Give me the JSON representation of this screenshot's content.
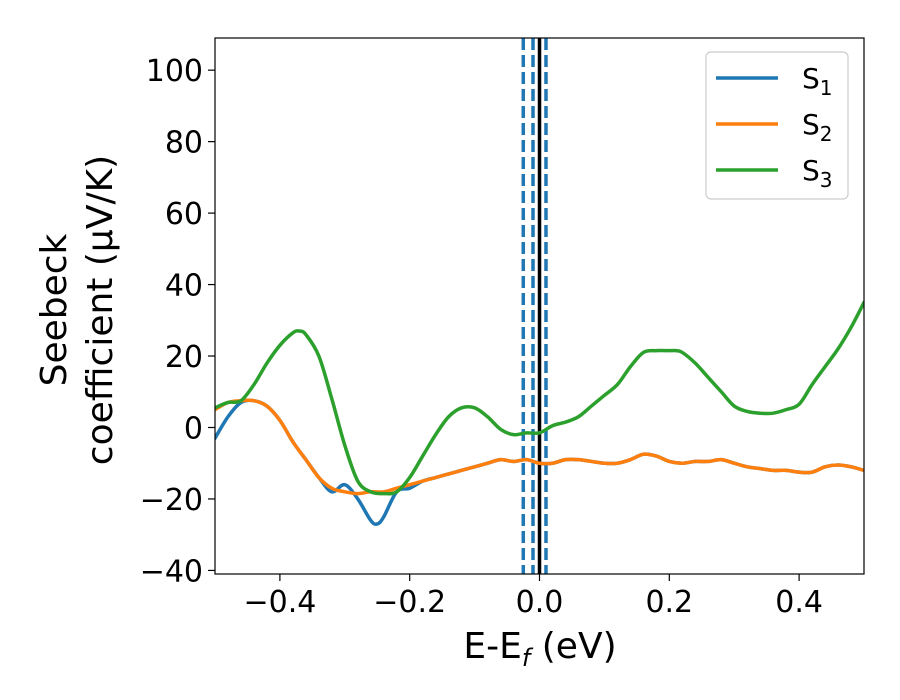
{
  "chart_data": {
    "type": "line",
    "xlabel": "E-E",
    "xlabel_sub": "f",
    "xlabel_unit": " (eV)",
    "ylabel_line1": "Seebeck",
    "ylabel_line2": "coefficient  (μV/K)",
    "xlim": [
      -0.5,
      0.5
    ],
    "ylim": [
      -41,
      109
    ],
    "xticks": [
      -0.4,
      -0.2,
      0.0,
      0.2,
      0.4
    ],
    "xtick_labels": [
      "−0.4",
      "−0.2",
      "0.0",
      "0.2",
      "0.4"
    ],
    "yticks": [
      -40,
      -20,
      0,
      20,
      40,
      60,
      80,
      100
    ],
    "ytick_labels": [
      "−40",
      "−20",
      "0",
      "20",
      "40",
      "60",
      "80",
      "100"
    ],
    "legend_position": "top-right",
    "grid": false,
    "vlines": [
      {
        "x": -0.025,
        "style": "dashed",
        "color": "#1f77b4"
      },
      {
        "x": -0.01,
        "style": "dashed",
        "color": "#1f77b4"
      },
      {
        "x": 0.01,
        "style": "dashed",
        "color": "#1f77b4"
      },
      {
        "x": 0.0,
        "style": "solid",
        "color": "#000000"
      }
    ],
    "series": [
      {
        "name": "S",
        "sub": "1",
        "color": "#1f77b4",
        "x": [
          -0.5,
          -0.48,
          -0.46,
          -0.44,
          -0.42,
          -0.4,
          -0.38,
          -0.36,
          -0.34,
          -0.32,
          -0.3,
          -0.28,
          -0.26,
          -0.25,
          -0.24,
          -0.22,
          -0.2,
          -0.18,
          -0.16,
          -0.14,
          -0.12,
          -0.1,
          -0.08,
          -0.06,
          -0.04,
          -0.02,
          0.0,
          0.02,
          0.04,
          0.06,
          0.08,
          0.1,
          0.12,
          0.14,
          0.16,
          0.18,
          0.2,
          0.22,
          0.24,
          0.26,
          0.28,
          0.3,
          0.32,
          0.34,
          0.36,
          0.38,
          0.4,
          0.42,
          0.44,
          0.46,
          0.48,
          0.5
        ],
        "y": [
          -3,
          3,
          7,
          7.5,
          6,
          2,
          -4,
          -9,
          -14,
          -18,
          -16,
          -20,
          -26,
          -27,
          -25,
          -18,
          -17,
          -15,
          -14,
          -13,
          -12,
          -11,
          -10,
          -9,
          -9.5,
          -9,
          -10,
          -10,
          -9,
          -9,
          -9.5,
          -10,
          -10,
          -9,
          -7.5,
          -8,
          -9.5,
          -10,
          -9.5,
          -9.5,
          -9,
          -10,
          -11,
          -11.5,
          -12,
          -12,
          -12.5,
          -12.5,
          -11,
          -10.5,
          -11,
          -12
        ]
      },
      {
        "name": "S",
        "sub": "2",
        "color": "#ff7f0e",
        "x": [
          -0.5,
          -0.48,
          -0.46,
          -0.44,
          -0.42,
          -0.4,
          -0.38,
          -0.36,
          -0.34,
          -0.32,
          -0.3,
          -0.28,
          -0.26,
          -0.24,
          -0.22,
          -0.2,
          -0.18,
          -0.16,
          -0.14,
          -0.12,
          -0.1,
          -0.08,
          -0.06,
          -0.04,
          -0.02,
          0.0,
          0.02,
          0.04,
          0.06,
          0.08,
          0.1,
          0.12,
          0.14,
          0.16,
          0.18,
          0.2,
          0.22,
          0.24,
          0.26,
          0.28,
          0.3,
          0.32,
          0.34,
          0.36,
          0.38,
          0.4,
          0.42,
          0.44,
          0.46,
          0.48,
          0.5
        ],
        "y": [
          5,
          7,
          7.5,
          7.5,
          6,
          2,
          -4,
          -9,
          -14,
          -17,
          -18,
          -18.5,
          -18,
          -18,
          -17,
          -16,
          -15,
          -14,
          -13,
          -12,
          -11,
          -10,
          -9,
          -9.5,
          -9,
          -10,
          -10,
          -9,
          -9,
          -9.5,
          -10,
          -10,
          -9,
          -7.5,
          -8,
          -9.5,
          -10,
          -9.5,
          -9.5,
          -9,
          -10,
          -11,
          -11.5,
          -12,
          -12,
          -12.5,
          -12.5,
          -11,
          -10.5,
          -11,
          -12
        ]
      },
      {
        "name": "S",
        "sub": "3",
        "color": "#2ca02c",
        "x": [
          -0.5,
          -0.48,
          -0.46,
          -0.44,
          -0.42,
          -0.4,
          -0.38,
          -0.37,
          -0.36,
          -0.34,
          -0.32,
          -0.3,
          -0.28,
          -0.26,
          -0.24,
          -0.22,
          -0.2,
          -0.18,
          -0.16,
          -0.14,
          -0.12,
          -0.1,
          -0.08,
          -0.06,
          -0.04,
          -0.02,
          0.0,
          0.02,
          0.04,
          0.06,
          0.08,
          0.1,
          0.12,
          0.14,
          0.16,
          0.18,
          0.2,
          0.21,
          0.22,
          0.24,
          0.26,
          0.28,
          0.3,
          0.32,
          0.34,
          0.36,
          0.38,
          0.4,
          0.42,
          0.44,
          0.46,
          0.48,
          0.5
        ],
        "y": [
          5.5,
          7,
          7.5,
          12,
          18,
          23,
          26.5,
          27,
          26,
          20,
          8,
          -5,
          -15,
          -18,
          -18.5,
          -18,
          -14,
          -8,
          -2,
          3,
          5.5,
          5.5,
          3,
          -0.5,
          -2,
          -1.5,
          -1.5,
          0.5,
          1.5,
          3,
          6,
          9,
          12,
          17,
          21,
          21.5,
          21.5,
          21.5,
          21,
          18,
          14,
          10,
          6,
          4.5,
          4,
          4,
          5,
          6.5,
          12,
          17,
          22,
          28,
          35
        ]
      }
    ]
  }
}
